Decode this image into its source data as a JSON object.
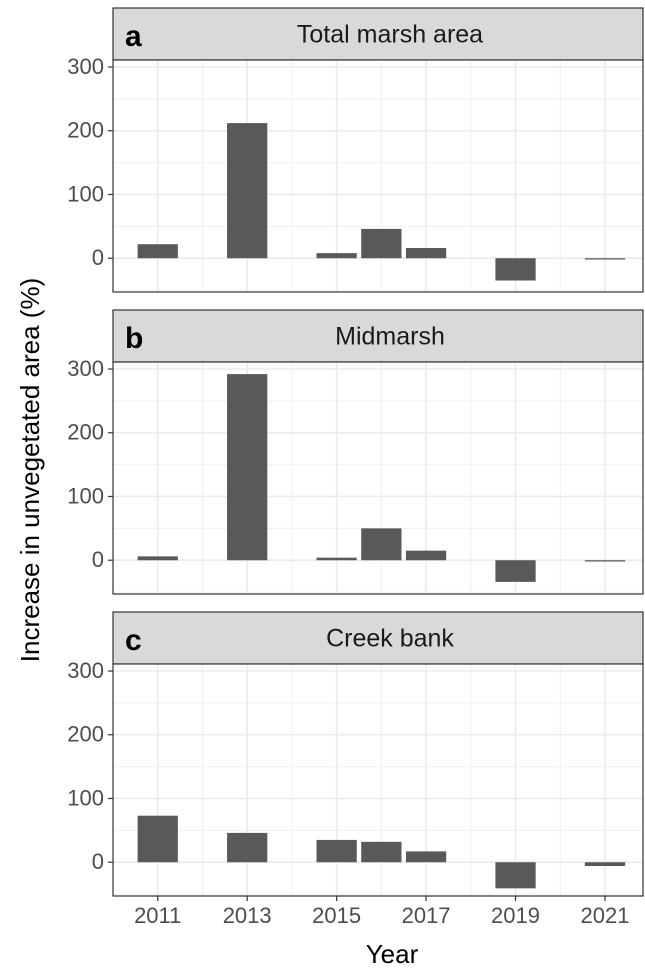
{
  "shared": {
    "xlabel": "Year",
    "ylabel": "Increase in unvegetated area (%)"
  },
  "chart_data": [
    {
      "type": "bar",
      "panel_label": "a",
      "title": "Total marsh area",
      "x": [
        2011,
        2013,
        2015,
        2016,
        2017,
        2019,
        2021
      ],
      "values": [
        22,
        212,
        8,
        46,
        16,
        -35,
        -2
      ],
      "color": "#595959",
      "xlim": [
        2010,
        2021.85
      ],
      "xticks": [
        2011,
        2013,
        2015,
        2017,
        2019,
        2021
      ],
      "ylim": [
        -53,
        311
      ],
      "yticks": [
        0,
        100,
        200,
        300
      ],
      "grid": true
    },
    {
      "type": "bar",
      "panel_label": "b",
      "title": "Midmarsh",
      "x": [
        2011,
        2013,
        2015,
        2016,
        2017,
        2019,
        2021
      ],
      "values": [
        6,
        292,
        4,
        50,
        15,
        -34,
        -2
      ],
      "color": "#595959",
      "xlim": [
        2010,
        2021.85
      ],
      "xticks": [
        2011,
        2013,
        2015,
        2017,
        2019,
        2021
      ],
      "ylim": [
        -53,
        311
      ],
      "yticks": [
        0,
        100,
        200,
        300
      ],
      "grid": true
    },
    {
      "type": "bar",
      "panel_label": "c",
      "title": "Creek bank",
      "x": [
        2011,
        2013,
        2015,
        2016,
        2017,
        2019,
        2021
      ],
      "values": [
        73,
        46,
        35,
        32,
        17,
        -41,
        -6
      ],
      "color": "#595959",
      "xlim": [
        2010,
        2021.85
      ],
      "xticks": [
        2011,
        2013,
        2015,
        2017,
        2019,
        2021
      ],
      "ylim": [
        -53,
        311
      ],
      "yticks": [
        0,
        100,
        200,
        300
      ],
      "grid": true
    }
  ]
}
